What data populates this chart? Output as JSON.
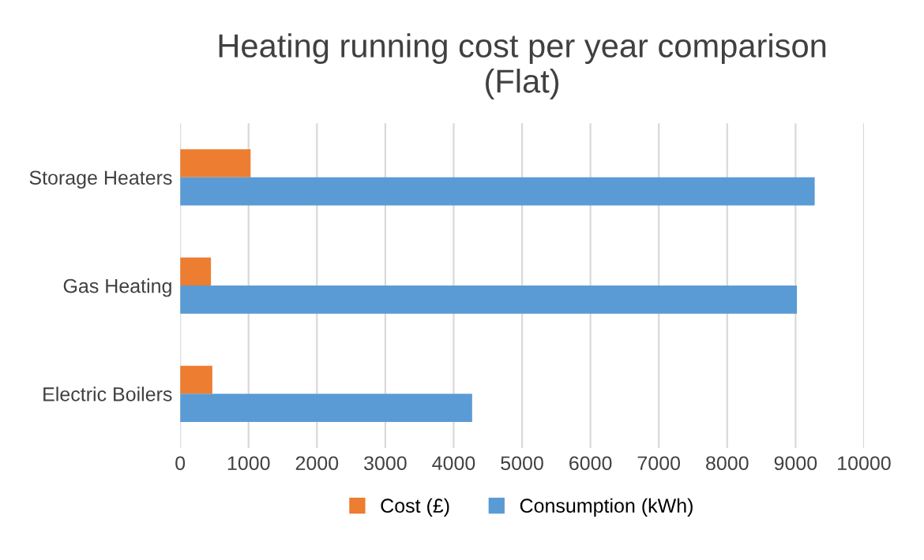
{
  "chart_data": {
    "type": "bar",
    "orientation": "horizontal",
    "title": "Heating running cost per year comparison\n(Flat)",
    "categories": [
      "Storage Heaters",
      "Gas Heating",
      "Electric Boilers"
    ],
    "series": [
      {
        "name": "Cost (£)",
        "color": "#ed7d31",
        "values": [
          1030,
          450,
          470
        ]
      },
      {
        "name": "Consumption (kWh)",
        "color": "#5b9bd5",
        "values": [
          9280,
          9020,
          4270
        ]
      }
    ],
    "xlim": [
      0,
      10000
    ],
    "xticks": [
      0,
      1000,
      2000,
      3000,
      4000,
      5000,
      6000,
      7000,
      8000,
      9000,
      10000
    ],
    "grid": "x",
    "legend": "bottom"
  }
}
